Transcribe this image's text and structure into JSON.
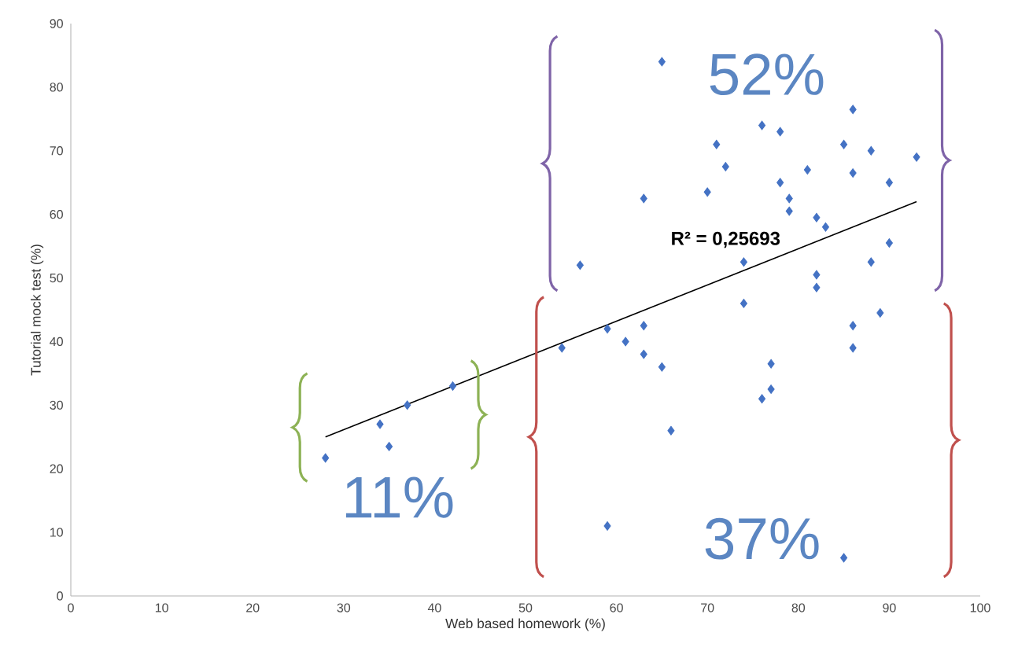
{
  "chart_data": {
    "type": "scatter",
    "xlabel": "Web based homework (%)",
    "ylabel": "Tutorial mock test (%)",
    "xlim": [
      0,
      100
    ],
    "ylim": [
      0,
      90
    ],
    "xticks": [
      0,
      10,
      20,
      30,
      40,
      50,
      60,
      70,
      80,
      90,
      100
    ],
    "yticks": [
      0,
      10,
      20,
      30,
      40,
      50,
      60,
      70,
      80,
      90
    ],
    "grid": false,
    "series": [
      {
        "marker": "diamond",
        "color": "#4472c4",
        "x": [
          28,
          34,
          35,
          37,
          42,
          54,
          56,
          59,
          59,
          61,
          63,
          63,
          63,
          65,
          65,
          66,
          70,
          71,
          72,
          74,
          74,
          76,
          76,
          77,
          77,
          78,
          78,
          79,
          79,
          81,
          82,
          82,
          82,
          83,
          85,
          85,
          86,
          86,
          86,
          86,
          88,
          88,
          89,
          90,
          90,
          93
        ],
        "values": [
          21.7,
          27,
          23.5,
          30,
          33,
          39,
          52,
          42,
          11,
          40,
          62.5,
          42.5,
          38,
          84,
          36,
          26,
          63.5,
          71,
          67.5,
          52.5,
          46,
          74,
          31,
          36.5,
          32.5,
          73,
          65,
          62.5,
          60.5,
          67,
          59.5,
          50.5,
          48.5,
          58,
          71,
          6,
          76.5,
          66.5,
          42.5,
          39,
          70,
          52.5,
          44.5,
          65,
          55.5,
          69
        ]
      },
      {
        "type": "line",
        "color": "#000000",
        "x": [
          28,
          93
        ],
        "values": [
          25,
          62
        ]
      }
    ],
    "annotations": [
      "R² = 0,25693",
      "52%",
      "37%",
      "11%"
    ]
  }
}
